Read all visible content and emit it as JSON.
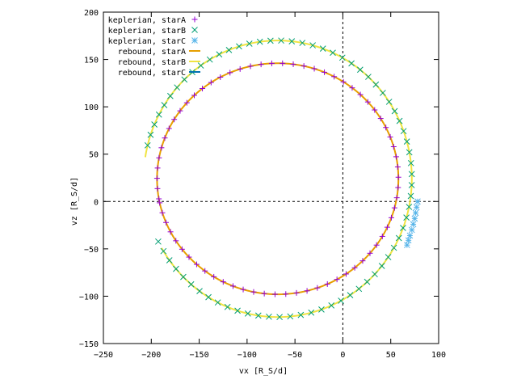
{
  "chart_data": {
    "type": "line",
    "xlabel": "vx [R_S/d]",
    "ylabel": "vz [R_S/d]",
    "xlim": [
      -250,
      100
    ],
    "ylim": [
      -150,
      200
    ],
    "x_ticks": [
      -250,
      -200,
      -150,
      -100,
      -50,
      0,
      50,
      100
    ],
    "y_ticks": [
      -150,
      -100,
      -50,
      0,
      50,
      100,
      150,
      200
    ],
    "x_tick_labels": [
      "−250",
      "−200",
      "−150",
      "−100",
      "−50",
      "0",
      "50",
      "100"
    ],
    "y_tick_labels": [
      "−150",
      "−100",
      "−50",
      "0",
      "50",
      "100",
      "150",
      "200"
    ],
    "zero_axes": true,
    "grid": false,
    "legend_position": "top-left",
    "series": [
      {
        "name": "keplerian, starA",
        "style": "points",
        "marker": "plus",
        "color": "#9400d3",
        "orbit": {
          "cx": -68,
          "cy": 24,
          "rx": 126,
          "ry": 122,
          "start_deg": 190,
          "end_deg": -168
        }
      },
      {
        "name": "keplerian, starB",
        "style": "points",
        "marker": "cross",
        "color": "#009e73",
        "orbit": {
          "cx": -68,
          "cy": 24,
          "rx": 140,
          "ry": 146,
          "start_deg": 166,
          "end_deg": -153
        }
      },
      {
        "name": "keplerian, starC",
        "style": "points",
        "marker": "star",
        "color": "#56b4e9",
        "x": [
          78,
          77,
          76,
          75,
          73.5,
          72,
          70,
          68.5,
          67
        ],
        "y": [
          0,
          -6,
          -12,
          -18,
          -24,
          -30,
          -36,
          -41,
          -46
        ]
      },
      {
        "name": "rebound, starA",
        "style": "line",
        "color": "#e69f00",
        "orbit": {
          "cx": -68,
          "cy": 24,
          "rx": 126,
          "ry": 122,
          "start_deg": 194,
          "end_deg": -166
        }
      },
      {
        "name": "rebound, starB",
        "style": "line",
        "color": "#f0e442",
        "orbit": {
          "cx": -68,
          "cy": 24,
          "rx": 140,
          "ry": 146,
          "start_deg": 171,
          "end_deg": -150
        }
      },
      {
        "name": "rebound, starC",
        "style": "line",
        "color": "#0072b2",
        "x": [],
        "y": []
      }
    ]
  }
}
